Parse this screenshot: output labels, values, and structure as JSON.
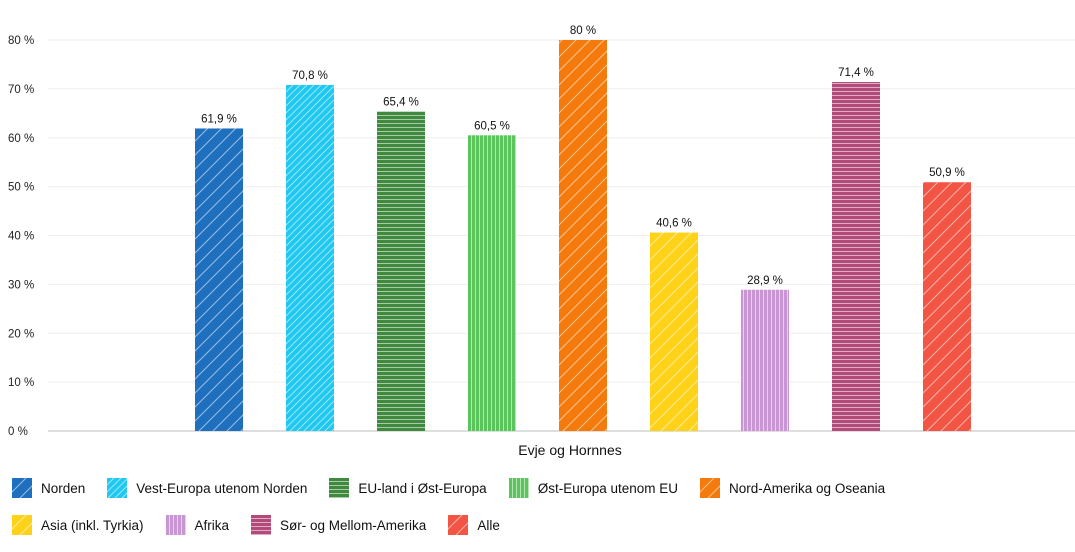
{
  "chart_data": {
    "type": "bar",
    "xlabel": "Evje og Hornnes",
    "ylabel": "",
    "ylim": [
      0,
      80
    ],
    "y_ticks": [
      "0 %",
      "10 %",
      "20 %",
      "30 %",
      "40 %",
      "50 %",
      "60 %",
      "70 %",
      "80 %"
    ],
    "grid": true,
    "legend_position": "bottom",
    "series": [
      {
        "name": "Norden",
        "value": 61.9,
        "label": "61,9 %",
        "color": "#1f6fbf",
        "pattern": "diag"
      },
      {
        "name": "Vest-Europa utenom Norden",
        "value": 70.8,
        "label": "70,8 %",
        "color": "#1ec8f0",
        "pattern": "diag-dense"
      },
      {
        "name": "EU-land i Øst-Europa",
        "value": 65.4,
        "label": "65,4 %",
        "color": "#3f8a3f",
        "pattern": "horizontal"
      },
      {
        "name": "Øst-Europa utenom EU",
        "value": 60.5,
        "label": "60,5 %",
        "color": "#5cc45c",
        "pattern": "vertical"
      },
      {
        "name": "Nord-Amerika og Oseania",
        "value": 80,
        "label": "80 %",
        "color": "#f47a0c",
        "pattern": "diag"
      },
      {
        "name": "Asia (inkl. Tyrkia)",
        "value": 40.6,
        "label": "40,6 %",
        "color": "#ffd21a",
        "pattern": "diag"
      },
      {
        "name": "Afrika",
        "value": 28.9,
        "label": "28,9 %",
        "color": "#c896d2",
        "pattern": "vertical"
      },
      {
        "name": "Sør- og Mellom-Amerika",
        "value": 71.4,
        "label": "71,4 %",
        "color": "#b24a7a",
        "pattern": "horizontal"
      },
      {
        "name": "Alle",
        "value": 50.9,
        "label": "50,9 %",
        "color": "#f25544",
        "pattern": "diag"
      }
    ]
  }
}
